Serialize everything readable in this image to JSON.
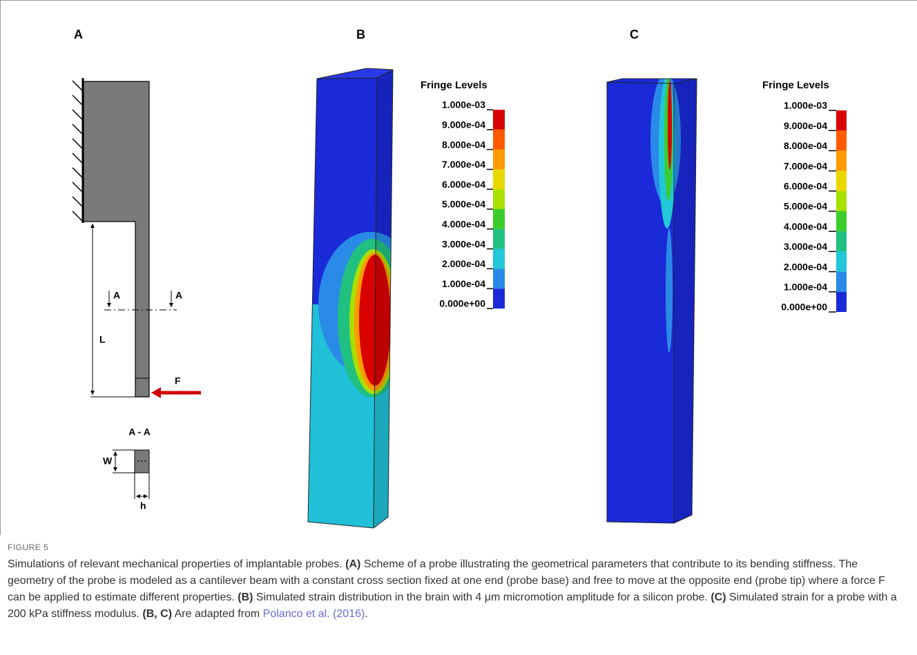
{
  "panels": {
    "a": {
      "label": "A",
      "section_marks": [
        "A",
        "A"
      ],
      "length_label": "L",
      "force_label": "F",
      "section_title": "A - A",
      "width_label": "W",
      "thickness_label": "h"
    },
    "b": {
      "label": "B",
      "legend": {
        "title": "Fringe Levels",
        "levels": [
          "1.000e-03",
          "9.000e-04",
          "8.000e-04",
          "7.000e-04",
          "6.000e-04",
          "5.000e-04",
          "4.000e-04",
          "3.000e-04",
          "2.000e-04",
          "1.000e-04",
          "0.000e+00"
        ],
        "colors": [
          "#d80000",
          "#ff5a00",
          "#ff9a00",
          "#e8d800",
          "#a8e000",
          "#3ccc2c",
          "#20c080",
          "#20c8d8",
          "#2a8ae8",
          "#1a2ad8"
        ]
      }
    },
    "c": {
      "label": "C",
      "legend": {
        "title": "Fringe Levels",
        "levels": [
          "1.000e-03",
          "9.000e-04",
          "8.000e-04",
          "7.000e-04",
          "6.000e-04",
          "5.000e-04",
          "4.000e-04",
          "3.000e-04",
          "2.000e-04",
          "1.000e-04",
          "0.000e+00"
        ],
        "colors": [
          "#d80000",
          "#ff5a00",
          "#ff9a00",
          "#e8d800",
          "#a8e000",
          "#3ccc2c",
          "#20c080",
          "#20c8d8",
          "#2a8ae8",
          "#1a2ad8"
        ]
      }
    }
  },
  "caption": {
    "figure_label": "FIGURE 5",
    "segments": [
      {
        "text": "Simulations of relevant mechanical properties of implantable probes. "
      },
      {
        "text": "(A)",
        "bold": true
      },
      {
        "text": " Scheme of a probe illustrating the geometrical parameters that contribute to its bending stiffness. The geometry of the probe is modeled as a cantilever beam with a constant cross section fixed at one end (probe base) and free to move at the opposite end (probe tip) where a force F can be applied to estimate different properties. "
      },
      {
        "text": "(B)",
        "bold": true
      },
      {
        "text": " Simulated strain distribution in the brain with 4 μm micromotion amplitude for a silicon probe. "
      },
      {
        "text": "(C)",
        "bold": true
      },
      {
        "text": " Simulated strain for a probe with a 200 kPa stiffness modulus. "
      },
      {
        "text": "(B, C)",
        "bold": true
      },
      {
        "text": " Are adapted from "
      },
      {
        "text": "Polanco et al. (2016)",
        "link": true
      },
      {
        "text": "."
      }
    ]
  }
}
